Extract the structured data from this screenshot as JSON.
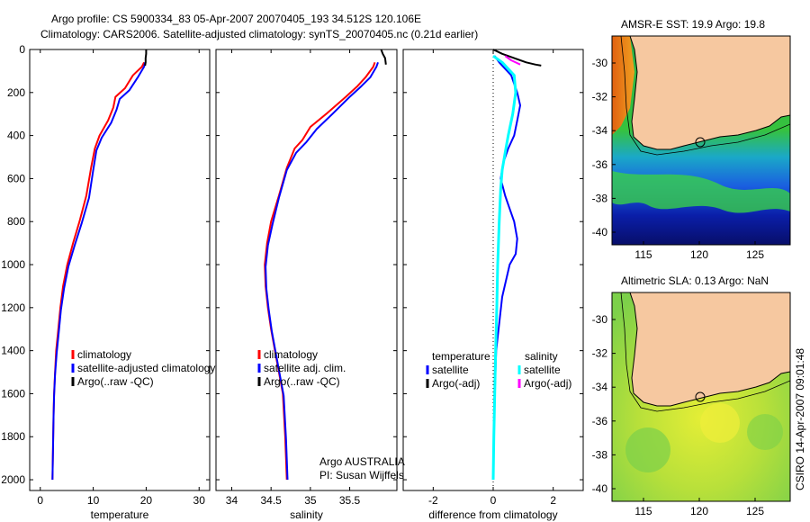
{
  "header": {
    "title_line1": "Argo profile: CS 5900334_83 05-Apr-2007 20070405_193 34.512S 120.106E",
    "title_line2": "Climatology: CARS2006. Satellite-adjusted climatology: synTS_20070405.nc (0.21d earlier)"
  },
  "colors": {
    "red": "#ff0000",
    "blue": "#0000ff",
    "black": "#000000",
    "cyan": "#00ffff",
    "magenta": "#ff00ff",
    "land": "#f6c8a0"
  },
  "chart_data": [
    {
      "id": "temperature",
      "type": "line",
      "xlabel": "temperature",
      "ylabel": "",
      "xlim": [
        -2,
        32
      ],
      "ylim": [
        0,
        2050
      ],
      "y_reversed": true,
      "xticks": [
        0,
        10,
        20,
        30
      ],
      "yticks": [
        0,
        200,
        400,
        600,
        800,
        1000,
        1200,
        1400,
        1600,
        1800,
        2000
      ],
      "series": [
        {
          "name": "climatology",
          "color": "#ff0000",
          "width": 2,
          "x": [
            19.6,
            19.2,
            17.5,
            16.0,
            14.2,
            13.8,
            12.8,
            11.2,
            10.3,
            9.6,
            8.7,
            7.4,
            6.2,
            5.1,
            4.3,
            3.8,
            3.4,
            3.0,
            2.8,
            2.6,
            2.5,
            2.4,
            2.3
          ],
          "y": [
            60,
            80,
            120,
            180,
            220,
            270,
            330,
            400,
            460,
            550,
            680,
            800,
            900,
            1000,
            1100,
            1200,
            1300,
            1400,
            1500,
            1600,
            1700,
            1850,
            2000
          ]
        },
        {
          "name": "satellite-adjusted climatology",
          "color": "#0000ff",
          "width": 2,
          "x": [
            19.8,
            19.6,
            18.4,
            16.8,
            15.0,
            14.4,
            13.4,
            11.6,
            10.6,
            10.0,
            9.2,
            7.8,
            6.5,
            5.3,
            4.5,
            3.9,
            3.5,
            3.1,
            2.8,
            2.6,
            2.5,
            2.4,
            2.3
          ],
          "y": [
            60,
            80,
            130,
            190,
            230,
            280,
            340,
            410,
            470,
            560,
            690,
            810,
            910,
            1010,
            1110,
            1210,
            1310,
            1410,
            1510,
            1610,
            1710,
            1860,
            2000
          ]
        },
        {
          "name": "Argo(..raw -QC)",
          "color": "#000000",
          "width": 2,
          "x": [
            20.0,
            20.0,
            19.9,
            19.9,
            19.8
          ],
          "y": [
            0,
            20,
            40,
            60,
            75
          ]
        }
      ],
      "legend": [
        "climatology",
        "satellite-adjusted climatology",
        "Argo(..raw -QC)"
      ],
      "legend_position": "bottom-right"
    },
    {
      "id": "salinity",
      "type": "line",
      "xlabel": "salinity",
      "ylabel": "",
      "xlim": [
        33.8,
        36.1
      ],
      "ylim": [
        0,
        2050
      ],
      "y_reversed": true,
      "xticks": [
        34,
        34.5,
        35,
        35.5
      ],
      "series": [
        {
          "name": "climatology",
          "color": "#ff0000",
          "width": 2,
          "x": [
            35.82,
            35.8,
            35.7,
            35.6,
            35.45,
            35.2,
            35.0,
            34.9,
            34.8,
            34.7,
            34.6,
            34.5,
            34.45,
            34.42,
            34.43,
            34.46,
            34.5,
            34.55,
            34.6,
            34.65,
            34.68,
            34.7
          ],
          "y": [
            60,
            80,
            130,
            170,
            220,
            300,
            360,
            420,
            460,
            550,
            680,
            800,
            900,
            1000,
            1100,
            1200,
            1300,
            1400,
            1500,
            1600,
            1800,
            2000
          ]
        },
        {
          "name": "satellite adj. clim.",
          "color": "#0000ff",
          "width": 2,
          "x": [
            35.86,
            35.84,
            35.76,
            35.65,
            35.5,
            35.28,
            35.08,
            34.95,
            34.82,
            34.7,
            34.6,
            34.52,
            34.46,
            34.43,
            34.44,
            34.47,
            34.51,
            34.56,
            34.61,
            34.66,
            34.69,
            34.71
          ],
          "y": [
            60,
            80,
            130,
            170,
            220,
            300,
            370,
            430,
            480,
            560,
            690,
            810,
            910,
            1010,
            1110,
            1210,
            1310,
            1410,
            1510,
            1610,
            1810,
            2000
          ]
        },
        {
          "name": "Argo(..raw -QC)",
          "color": "#000000",
          "width": 2,
          "x": [
            35.9,
            35.92,
            35.95,
            35.96
          ],
          "y": [
            0,
            20,
            40,
            70
          ]
        }
      ],
      "legend": [
        "climatology",
        "satellite adj. clim.",
        "Argo(..raw -QC)"
      ],
      "legend_position": "bottom-right",
      "annotation": [
        "Argo AUSTRALIA",
        "PI: Susan Wijffels"
      ]
    },
    {
      "id": "difference",
      "type": "line",
      "xlabel": "difference from climatology",
      "ylabel": "",
      "xlim": [
        -3,
        3
      ],
      "ylim": [
        0,
        2050
      ],
      "y_reversed": true,
      "xticks": [
        -2,
        0,
        2
      ],
      "zero_line": true,
      "series": [
        {
          "name": "temperature satellite",
          "color": "#0000ff",
          "width": 2,
          "x": [
            0.05,
            0.2,
            0.6,
            0.8,
            0.9,
            0.8,
            0.7,
            0.5,
            0.35,
            0.25,
            0.4,
            0.55,
            0.7,
            0.8,
            0.75,
            0.55,
            0.3,
            0.1,
            0.05,
            0.02,
            0.0
          ],
          "y": [
            30,
            60,
            120,
            200,
            260,
            330,
            400,
            460,
            520,
            600,
            680,
            740,
            800,
            880,
            950,
            1000,
            1150,
            1400,
            1600,
            1800,
            2000
          ]
        },
        {
          "name": "salinity satellite",
          "color": "#00ffff",
          "width": 3,
          "x": [
            0.0,
            0.3,
            0.7,
            0.75,
            0.65,
            0.5,
            0.4,
            0.3,
            0.25,
            0.2,
            0.15,
            0.12,
            0.08,
            0.05,
            0.02,
            0.0
          ],
          "y": [
            30,
            60,
            120,
            200,
            300,
            400,
            480,
            560,
            650,
            800,
            1000,
            1200,
            1400,
            1600,
            1800,
            2000
          ]
        },
        {
          "name": "temperature Argo(-adj)",
          "color": "#000000",
          "width": 2,
          "x": [
            0.0,
            0.3,
            0.7,
            1.1,
            1.4,
            1.6
          ],
          "y": [
            0,
            20,
            40,
            60,
            70,
            75
          ]
        },
        {
          "name": "salinity Argo(-adj)",
          "color": "#ff00ff",
          "width": 2,
          "x": [
            0.4,
            0.6,
            0.9
          ],
          "y": [
            30,
            50,
            70
          ]
        }
      ],
      "legend_left_title": "temperature",
      "legend_right_title": "salinity",
      "legend_left": [
        "satellite",
        "Argo(-adj)"
      ],
      "legend_right": [
        "satellite",
        "Argo(-adj)"
      ]
    }
  ],
  "maps": [
    {
      "id": "sst-map",
      "title": "AMSR-E SST: 19.9 Argo: 19.8",
      "xticks": [
        "115",
        "120",
        "125"
      ],
      "yticks": [
        "-30",
        "-32",
        "-34",
        "-36",
        "-38",
        "-40"
      ],
      "colormap": "sst"
    },
    {
      "id": "sla-map",
      "title": "Altimetric SLA: 0.13 Argo: NaN",
      "xticks": [
        "115",
        "120",
        "125"
      ],
      "yticks": [
        "-30",
        "-32",
        "-34",
        "-36",
        "-38",
        "-40"
      ],
      "colormap": "sla"
    }
  ],
  "footer": {
    "credit": "CSIRO 14-Apr-2007 09:01:48"
  }
}
